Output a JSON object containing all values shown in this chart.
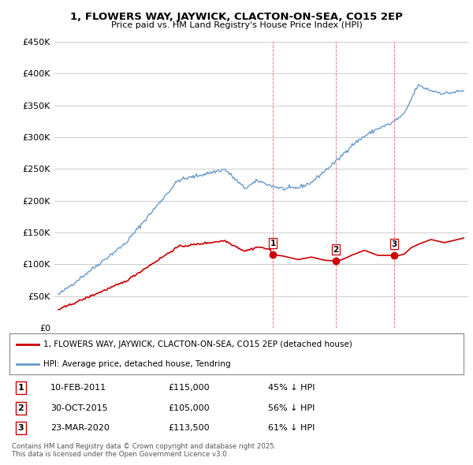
{
  "title": "1, FLOWERS WAY, JAYWICK, CLACTON-ON-SEA, CO15 2EP",
  "subtitle": "Price paid vs. HM Land Registry's House Price Index (HPI)",
  "legend_line1": "1, FLOWERS WAY, JAYWICK, CLACTON-ON-SEA, CO15 2EP (detached house)",
  "legend_line2": "HPI: Average price, detached house, Tendring",
  "footer": "Contains HM Land Registry data © Crown copyright and database right 2025.\nThis data is licensed under the Open Government Licence v3.0.",
  "transactions": [
    {
      "num": 1,
      "date": "10-FEB-2011",
      "price": "£115,000",
      "pct": "45% ↓ HPI",
      "year": 2011.12
    },
    {
      "num": 2,
      "date": "30-OCT-2015",
      "price": "£105,000",
      "pct": "56% ↓ HPI",
      "year": 2015.83
    },
    {
      "num": 3,
      "date": "23-MAR-2020",
      "price": "£113,500",
      "pct": "61% ↓ HPI",
      "year": 2020.23
    }
  ],
  "red_color": "#cc0000",
  "blue_color": "#6699cc",
  "background": "#ffffff",
  "grid_color": "#cccccc",
  "ylim": [
    0,
    450000
  ],
  "xlim_start": 1994.7,
  "xlim_end": 2025.8
}
